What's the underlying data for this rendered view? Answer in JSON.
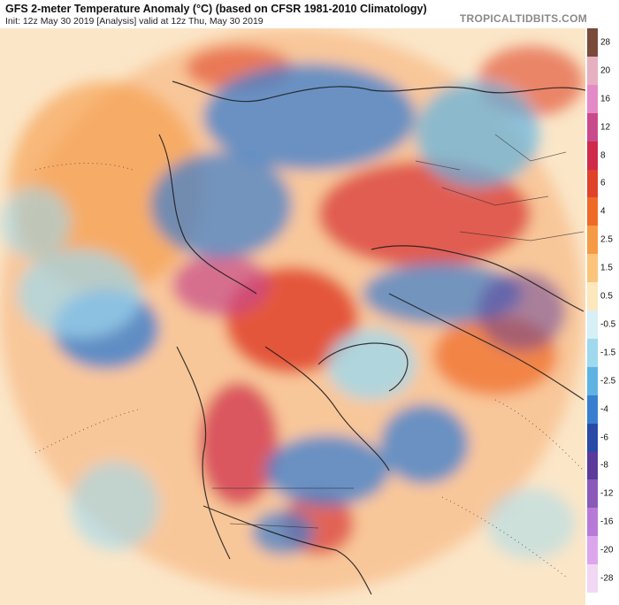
{
  "header": {
    "title": "GFS 2-meter Temperature Anomaly (°C) (based on CFSR 1981-2010 Climatology)",
    "subtitle": "Init: 12z May 30 2019   [Analysis]   valid at 12z Thu, May 30 2019",
    "brand": "TROPICALTIDBITS.COM"
  },
  "colorbar": {
    "labels": [
      "28",
      "20",
      "16",
      "12",
      "8",
      "6",
      "4",
      "2.5",
      "1.5",
      "0.5",
      "-0.5",
      "-1.5",
      "-2.5",
      "-4",
      "-6",
      "-8",
      "-12",
      "-16",
      "-20",
      "-28"
    ],
    "colors": [
      "#7a4a3a",
      "#e6b0c0",
      "#e48ac8",
      "#c94a8c",
      "#cf2a4a",
      "#e0422a",
      "#ef6a26",
      "#f59a45",
      "#fbc47a",
      "#fde7bd",
      "#d6f0f5",
      "#9fd9ee",
      "#5fb3e3",
      "#3a7fcf",
      "#2a4aa8",
      "#5a3a9a",
      "#8a5ab8",
      "#b87ad8",
      "#dca6ec",
      "#f2d8f4"
    ]
  }
}
